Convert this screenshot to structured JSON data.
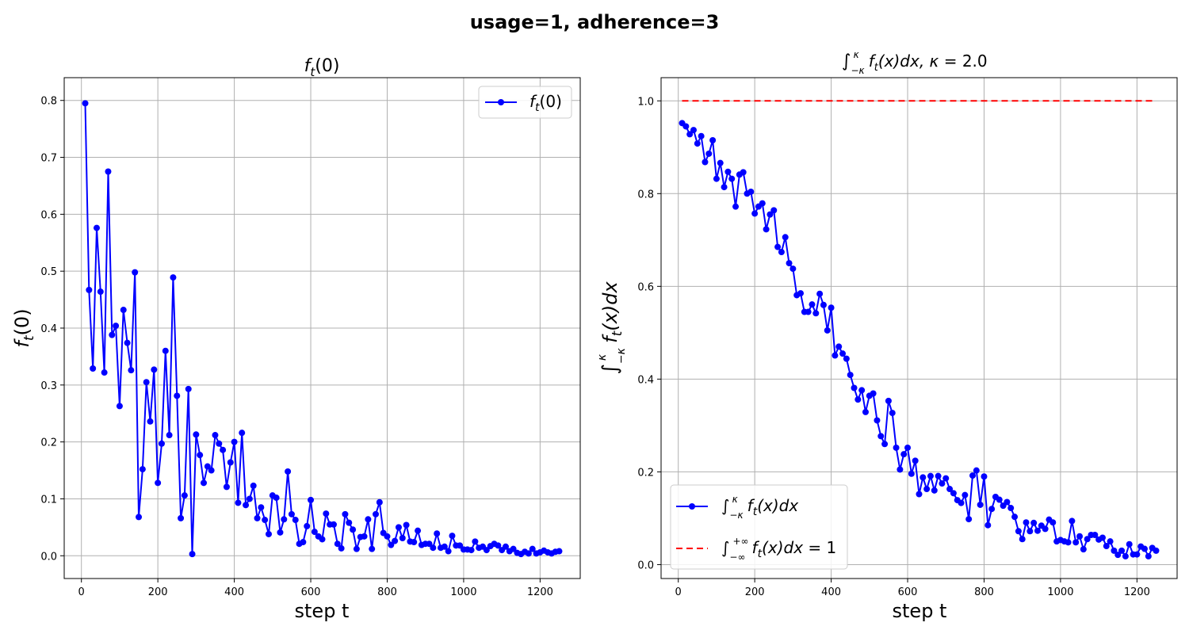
{
  "figure": {
    "suptitle": "usage=1, adherence=3"
  },
  "chart_data": [
    {
      "type": "line",
      "title": "f_t(0)",
      "xlabel": "step t",
      "ylabel": "f_t(0)",
      "xlim": [
        -45,
        1305
      ],
      "ylim": [
        -0.04,
        0.84
      ],
      "xticks": [
        0,
        200,
        400,
        600,
        800,
        1000,
        1200
      ],
      "yticks": [
        0.0,
        0.1,
        0.2,
        0.3,
        0.4,
        0.5,
        0.6,
        0.7,
        0.8
      ],
      "grid": true,
      "legend_position": "upper-right",
      "series": [
        {
          "name": "f_t(0)",
          "color": "#0000ff",
          "style": "solid",
          "marker": "circle",
          "x": [
            10,
            20,
            30,
            40,
            50,
            60,
            70,
            80,
            90,
            100,
            110,
            120,
            130,
            140,
            150,
            160,
            170,
            180,
            190,
            200,
            210,
            220,
            230,
            240,
            250,
            260,
            270,
            280,
            290,
            300,
            310,
            320,
            330,
            340,
            350,
            360,
            370,
            380,
            390,
            400,
            410,
            420,
            430,
            440,
            450,
            460,
            470,
            480,
            490,
            500,
            510,
            520,
            530,
            540,
            550,
            560,
            570,
            580,
            590,
            600,
            610,
            620,
            630,
            640,
            650,
            660,
            670,
            680,
            690,
            700,
            710,
            720,
            730,
            740,
            750,
            760,
            770,
            780,
            790,
            800,
            810,
            820,
            830,
            840,
            850,
            860,
            870,
            880,
            890,
            900,
            910,
            920,
            930,
            940,
            950,
            960,
            970,
            980,
            990,
            1000,
            1010,
            1020,
            1030,
            1040,
            1050,
            1060,
            1070,
            1080,
            1090,
            1100,
            1110,
            1120,
            1130,
            1140,
            1150,
            1160,
            1170,
            1180,
            1190,
            1200,
            1210,
            1220,
            1230,
            1240,
            1250
          ],
          "y": [
            0.795,
            0.467,
            0.329,
            0.576,
            0.464,
            0.322,
            0.675,
            0.388,
            0.404,
            0.263,
            0.432,
            0.374,
            0.326,
            0.498,
            0.068,
            0.152,
            0.305,
            0.236,
            0.327,
            0.128,
            0.197,
            0.36,
            0.212,
            0.489,
            0.281,
            0.066,
            0.106,
            0.293,
            0.003,
            0.213,
            0.177,
            0.128,
            0.157,
            0.15,
            0.212,
            0.197,
            0.186,
            0.121,
            0.164,
            0.2,
            0.093,
            0.216,
            0.089,
            0.1,
            0.123,
            0.066,
            0.085,
            0.063,
            0.038,
            0.106,
            0.102,
            0.041,
            0.064,
            0.148,
            0.073,
            0.063,
            0.021,
            0.024,
            0.052,
            0.098,
            0.042,
            0.034,
            0.029,
            0.074,
            0.055,
            0.055,
            0.021,
            0.013,
            0.073,
            0.058,
            0.046,
            0.012,
            0.033,
            0.034,
            0.064,
            0.012,
            0.073,
            0.094,
            0.04,
            0.034,
            0.019,
            0.026,
            0.05,
            0.031,
            0.054,
            0.025,
            0.024,
            0.044,
            0.019,
            0.021,
            0.021,
            0.014,
            0.039,
            0.014,
            0.016,
            0.008,
            0.035,
            0.018,
            0.018,
            0.011,
            0.011,
            0.01,
            0.025,
            0.014,
            0.016,
            0.01,
            0.017,
            0.021,
            0.018,
            0.01,
            0.016,
            0.008,
            0.012,
            0.005,
            0.003,
            0.007,
            0.004,
            0.012,
            0.004,
            0.006,
            0.009,
            0.006,
            0.004,
            0.007,
            0.008
          ]
        }
      ]
    },
    {
      "type": "line",
      "title_prefix": "∫",
      "title_sub": "−κ",
      "title_sup": "κ",
      "title_main": "f",
      "title_main_sub": "t",
      "title_tail": "(x)dx,  κ =  2.0",
      "xlabel": "step t",
      "ylabel": "∫₋κᵏ f_t(x)dx",
      "xlim": [
        -45,
        1305
      ],
      "ylim": [
        -0.03,
        1.05
      ],
      "xticks": [
        0,
        200,
        400,
        600,
        800,
        1000,
        1200
      ],
      "yticks": [
        0.0,
        0.2,
        0.4,
        0.6,
        0.8,
        1.0
      ],
      "grid": true,
      "legend_position": "lower-left",
      "series": [
        {
          "name": "∫ f_t(x)dx (−κ to κ)",
          "color": "#0000ff",
          "style": "solid",
          "marker": "circle",
          "x": [
            10,
            20,
            30,
            40,
            50,
            60,
            70,
            80,
            90,
            100,
            110,
            120,
            130,
            140,
            150,
            160,
            170,
            180,
            190,
            200,
            210,
            220,
            230,
            240,
            250,
            260,
            270,
            280,
            290,
            300,
            310,
            320,
            330,
            340,
            350,
            360,
            370,
            380,
            390,
            400,
            410,
            420,
            430,
            440,
            450,
            460,
            470,
            480,
            490,
            500,
            510,
            520,
            530,
            540,
            550,
            560,
            570,
            580,
            590,
            600,
            610,
            620,
            630,
            640,
            650,
            660,
            670,
            680,
            690,
            700,
            710,
            720,
            730,
            740,
            750,
            760,
            770,
            780,
            790,
            800,
            810,
            820,
            830,
            840,
            850,
            860,
            870,
            880,
            890,
            900,
            910,
            920,
            930,
            940,
            950,
            960,
            970,
            980,
            990,
            1000,
            1010,
            1020,
            1030,
            1040,
            1050,
            1060,
            1070,
            1080,
            1090,
            1100,
            1110,
            1120,
            1130,
            1140,
            1150,
            1160,
            1170,
            1180,
            1190,
            1200,
            1210,
            1220,
            1230,
            1240,
            1250
          ],
          "y": [
            0.952,
            0.945,
            0.928,
            0.937,
            0.908,
            0.924,
            0.868,
            0.886,
            0.915,
            0.832,
            0.866,
            0.814,
            0.847,
            0.832,
            0.772,
            0.841,
            0.846,
            0.8,
            0.804,
            0.757,
            0.772,
            0.779,
            0.723,
            0.755,
            0.764,
            0.685,
            0.674,
            0.706,
            0.65,
            0.638,
            0.581,
            0.585,
            0.545,
            0.545,
            0.561,
            0.542,
            0.584,
            0.56,
            0.505,
            0.554,
            0.451,
            0.47,
            0.455,
            0.444,
            0.409,
            0.381,
            0.356,
            0.376,
            0.329,
            0.364,
            0.369,
            0.311,
            0.277,
            0.26,
            0.353,
            0.327,
            0.252,
            0.205,
            0.238,
            0.252,
            0.196,
            0.224,
            0.152,
            0.188,
            0.163,
            0.191,
            0.16,
            0.191,
            0.175,
            0.186,
            0.163,
            0.154,
            0.139,
            0.133,
            0.15,
            0.098,
            0.192,
            0.203,
            0.129,
            0.19,
            0.085,
            0.12,
            0.146,
            0.14,
            0.127,
            0.135,
            0.122,
            0.103,
            0.072,
            0.055,
            0.091,
            0.072,
            0.09,
            0.073,
            0.084,
            0.077,
            0.097,
            0.091,
            0.05,
            0.053,
            0.05,
            0.048,
            0.094,
            0.048,
            0.061,
            0.033,
            0.055,
            0.064,
            0.064,
            0.054,
            0.058,
            0.04,
            0.05,
            0.03,
            0.021,
            0.03,
            0.018,
            0.044,
            0.022,
            0.022,
            0.039,
            0.034,
            0.018,
            0.036,
            0.03
          ]
        },
        {
          "name": "∫ f_t(x)dx = 1 (−∞ to +∞)",
          "color": "#ff0000",
          "style": "dashed",
          "marker": "none",
          "x": [
            10,
            1250
          ],
          "y": [
            1.0,
            1.0
          ]
        }
      ]
    }
  ]
}
